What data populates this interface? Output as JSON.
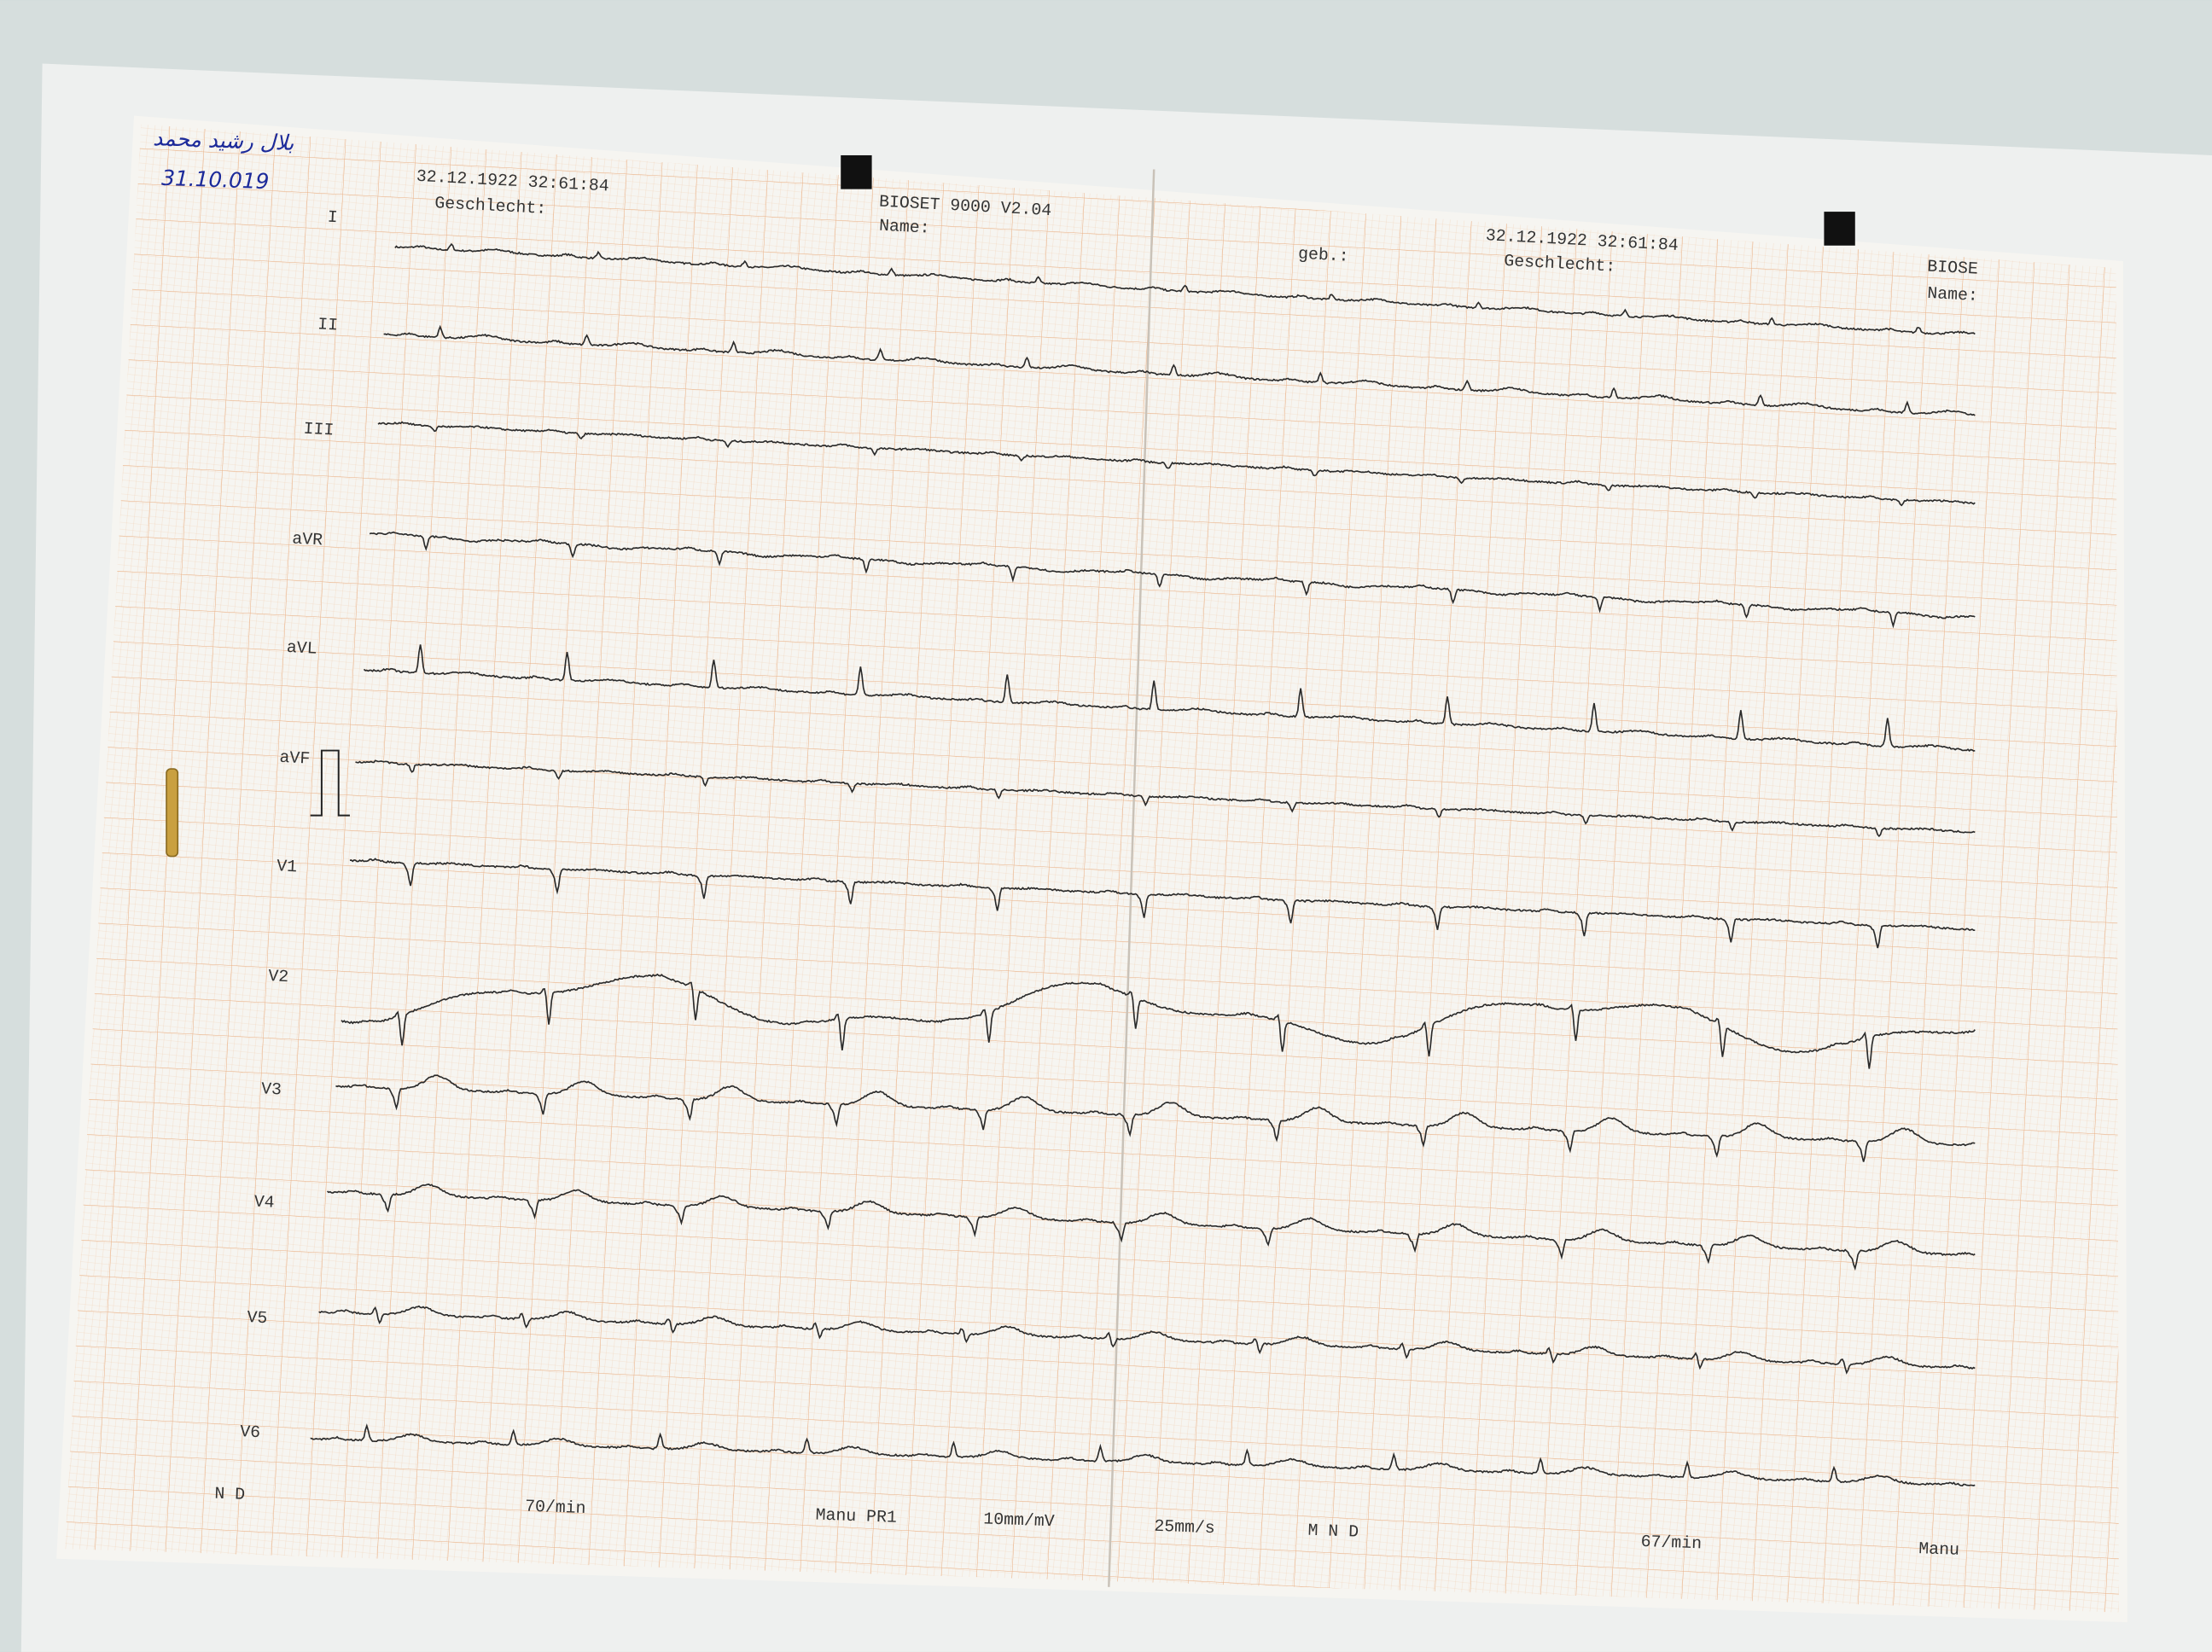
{
  "handwritten": {
    "name": "بلال رشيد محمد",
    "date": "31.10.019"
  },
  "header_left": {
    "datetime": "32.12.1922 32:61:84",
    "gender": "Geschlecht:",
    "device": "BIOSET 9000 V2.04",
    "name": "Name:"
  },
  "header_right": {
    "birth": "geb.:",
    "datetime": "32.12.1922 32:61:84",
    "gender": "Geschlecht:",
    "device": "BIOSE",
    "name": "Name:"
  },
  "leads": [
    "I",
    "II",
    "III",
    "aVR",
    "aVL",
    "aVF",
    "V1",
    "V2",
    "V3",
    "V4",
    "V5",
    "V6"
  ],
  "footer_left": {
    "filter": "N D",
    "rate": "70/min",
    "mode": "Manu PR1",
    "gain": "10mm/mV",
    "speed": "25mm/s"
  },
  "footer_right": {
    "filter": "M N D",
    "rate": "67/min",
    "mode": "Manu"
  }
}
